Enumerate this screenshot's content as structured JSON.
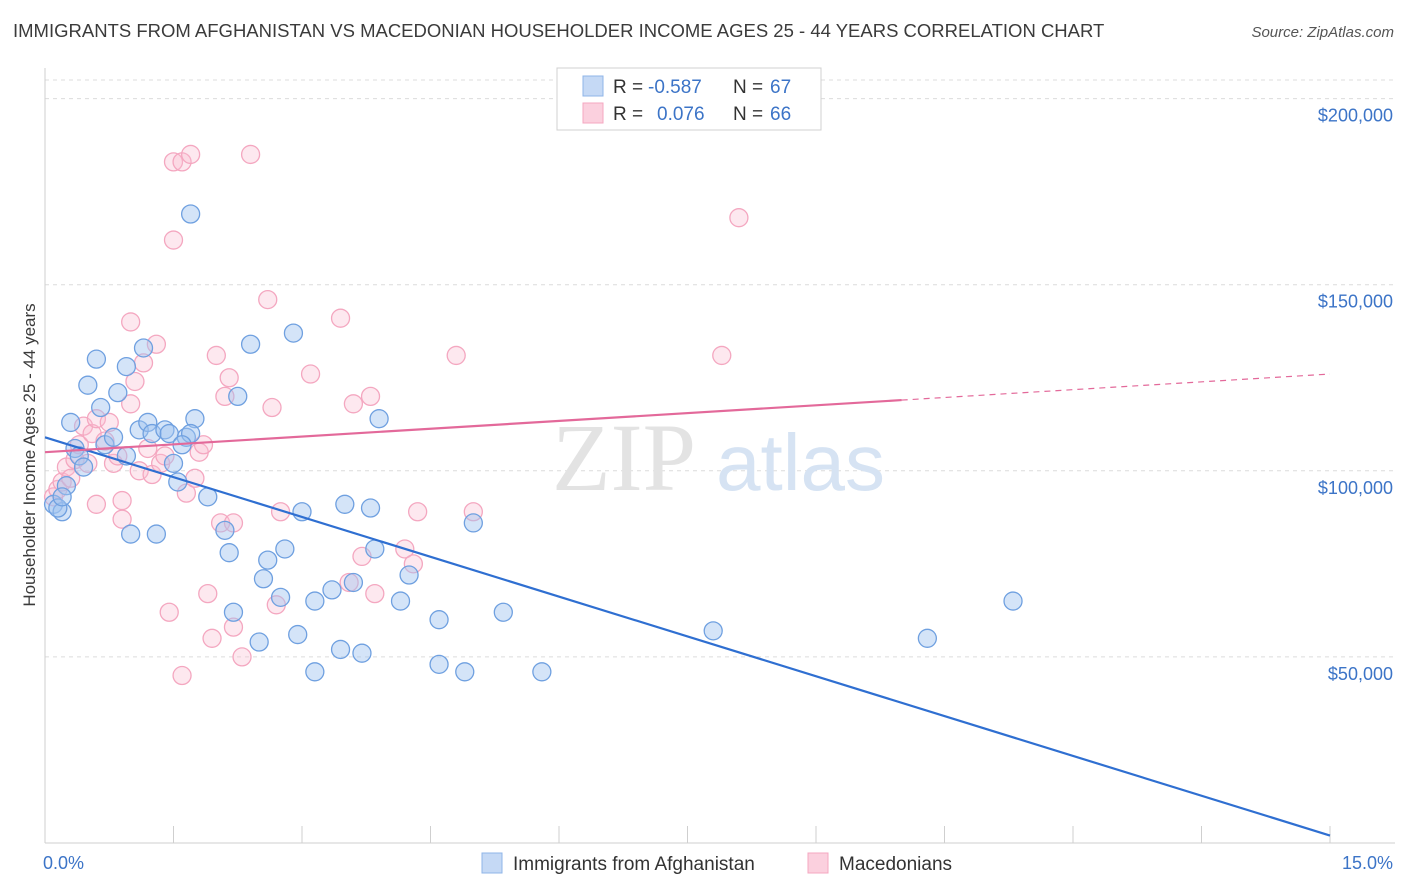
{
  "title": "IMMIGRANTS FROM AFGHANISTAN VS MACEDONIAN HOUSEHOLDER INCOME AGES 25 - 44 YEARS CORRELATION CHART",
  "source": "Source: ZipAtlas.com",
  "watermark": {
    "zip": "ZIP",
    "atlas": "atlas"
  },
  "legend": {
    "rows": [
      {
        "r_label": "R =",
        "r_value": "-0.587",
        "n_label": "N =",
        "n_value": "67",
        "color": "#8fb5e8"
      },
      {
        "r_label": "R =",
        "r_value": "0.076",
        "n_label": "N =",
        "n_value": "66",
        "color": "#f4a7c0"
      }
    ]
  },
  "chart_data": {
    "type": "scatter",
    "ylabel": "Householder Income Ages 25 - 44 years",
    "xlim": [
      0,
      15
    ],
    "ylim": [
      0,
      205000
    ],
    "x_tick_labels": [
      "0.0%",
      "15.0%"
    ],
    "y_ticks": [
      50000,
      100000,
      150000,
      200000
    ],
    "y_tick_labels": [
      "$50,000",
      "$100,000",
      "$150,000",
      "$200,000"
    ],
    "grid": "horizontal dashed",
    "legend_position": "bottom",
    "series": [
      {
        "name": "Immigrants from Afghanistan",
        "color": "#6fa0e0",
        "line_color": "#2f6fd1",
        "trend": {
          "x0": 0,
          "y0": 109000,
          "x1": 15,
          "y1": 2000
        },
        "points": [
          [
            0.1,
            91000
          ],
          [
            0.2,
            89000
          ],
          [
            0.25,
            96000
          ],
          [
            0.3,
            113000
          ],
          [
            0.35,
            106000
          ],
          [
            0.4,
            104000
          ],
          [
            0.5,
            123000
          ],
          [
            0.6,
            130000
          ],
          [
            0.65,
            117000
          ],
          [
            0.7,
            107000
          ],
          [
            0.8,
            109000
          ],
          [
            0.85,
            121000
          ],
          [
            0.95,
            104000
          ],
          [
            0.95,
            128000
          ],
          [
            1.0,
            83000
          ],
          [
            1.1,
            111000
          ],
          [
            1.15,
            133000
          ],
          [
            1.2,
            113000
          ],
          [
            1.25,
            110000
          ],
          [
            1.3,
            83000
          ],
          [
            1.4,
            111000
          ],
          [
            1.45,
            110000
          ],
          [
            1.5,
            102000
          ],
          [
            1.55,
            97000
          ],
          [
            1.65,
            109000
          ],
          [
            1.75,
            114000
          ],
          [
            1.7,
            110000
          ],
          [
            1.6,
            107000
          ],
          [
            1.7,
            169000
          ],
          [
            1.9,
            93000
          ],
          [
            2.1,
            84000
          ],
          [
            2.15,
            78000
          ],
          [
            2.2,
            62000
          ],
          [
            2.25,
            120000
          ],
          [
            2.4,
            134000
          ],
          [
            2.5,
            54000
          ],
          [
            2.55,
            71000
          ],
          [
            2.6,
            76000
          ],
          [
            2.75,
            66000
          ],
          [
            2.8,
            79000
          ],
          [
            2.9,
            137000
          ],
          [
            2.95,
            56000
          ],
          [
            3.0,
            89000
          ],
          [
            3.15,
            65000
          ],
          [
            3.15,
            46000
          ],
          [
            3.35,
            68000
          ],
          [
            3.45,
            52000
          ],
          [
            3.5,
            91000
          ],
          [
            3.6,
            70000
          ],
          [
            3.7,
            51000
          ],
          [
            3.8,
            90000
          ],
          [
            3.85,
            79000
          ],
          [
            3.9,
            114000
          ],
          [
            4.25,
            72000
          ],
          [
            4.15,
            65000
          ],
          [
            4.6,
            60000
          ],
          [
            4.6,
            48000
          ],
          [
            4.9,
            46000
          ],
          [
            5.0,
            86000
          ],
          [
            5.35,
            62000
          ],
          [
            5.8,
            46000
          ],
          [
            7.8,
            57000
          ],
          [
            10.3,
            55000
          ],
          [
            11.3,
            65000
          ],
          [
            0.15,
            90000
          ],
          [
            0.2,
            93000
          ],
          [
            0.45,
            101000
          ]
        ]
      },
      {
        "name": "Macedonians",
        "color": "#f4a7c0",
        "line_color": "#e3699a",
        "trend": {
          "x0": 0,
          "y0": 105000,
          "x1": 10.0,
          "y1": 119000
        },
        "trend_dashed_to": {
          "x": 15,
          "y": 126000
        },
        "points": [
          [
            0.1,
            93000
          ],
          [
            0.15,
            95000
          ],
          [
            0.2,
            97000
          ],
          [
            0.25,
            101000
          ],
          [
            0.35,
            103000
          ],
          [
            0.4,
            107000
          ],
          [
            0.45,
            112000
          ],
          [
            0.5,
            102000
          ],
          [
            0.55,
            110000
          ],
          [
            0.6,
            114000
          ],
          [
            0.6,
            91000
          ],
          [
            0.7,
            108000
          ],
          [
            0.75,
            113000
          ],
          [
            0.8,
            102000
          ],
          [
            0.85,
            104000
          ],
          [
            0.9,
            87000
          ],
          [
            0.9,
            92000
          ],
          [
            1.0,
            118000
          ],
          [
            1.0,
            140000
          ],
          [
            1.05,
            124000
          ],
          [
            1.1,
            100000
          ],
          [
            1.15,
            129000
          ],
          [
            1.2,
            106000
          ],
          [
            1.25,
            99000
          ],
          [
            1.3,
            134000
          ],
          [
            1.35,
            102000
          ],
          [
            1.4,
            104000
          ],
          [
            1.45,
            62000
          ],
          [
            1.5,
            162000
          ],
          [
            1.5,
            183000
          ],
          [
            1.6,
            183000
          ],
          [
            1.65,
            94000
          ],
          [
            1.7,
            185000
          ],
          [
            1.75,
            98000
          ],
          [
            1.8,
            105000
          ],
          [
            1.85,
            107000
          ],
          [
            1.9,
            67000
          ],
          [
            1.95,
            55000
          ],
          [
            2.0,
            131000
          ],
          [
            2.05,
            86000
          ],
          [
            2.1,
            120000
          ],
          [
            2.15,
            125000
          ],
          [
            2.2,
            86000
          ],
          [
            2.2,
            58000
          ],
          [
            2.3,
            50000
          ],
          [
            2.4,
            185000
          ],
          [
            2.6,
            146000
          ],
          [
            2.65,
            117000
          ],
          [
            2.7,
            64000
          ],
          [
            2.75,
            89000
          ],
          [
            3.1,
            126000
          ],
          [
            3.45,
            141000
          ],
          [
            3.55,
            70000
          ],
          [
            3.6,
            118000
          ],
          [
            3.7,
            77000
          ],
          [
            3.8,
            120000
          ],
          [
            3.85,
            67000
          ],
          [
            4.2,
            79000
          ],
          [
            4.3,
            75000
          ],
          [
            4.35,
            89000
          ],
          [
            4.8,
            131000
          ],
          [
            5.0,
            89000
          ],
          [
            7.9,
            131000
          ],
          [
            8.1,
            168000
          ],
          [
            1.6,
            45000
          ],
          [
            0.3,
            98000
          ]
        ]
      }
    ]
  }
}
